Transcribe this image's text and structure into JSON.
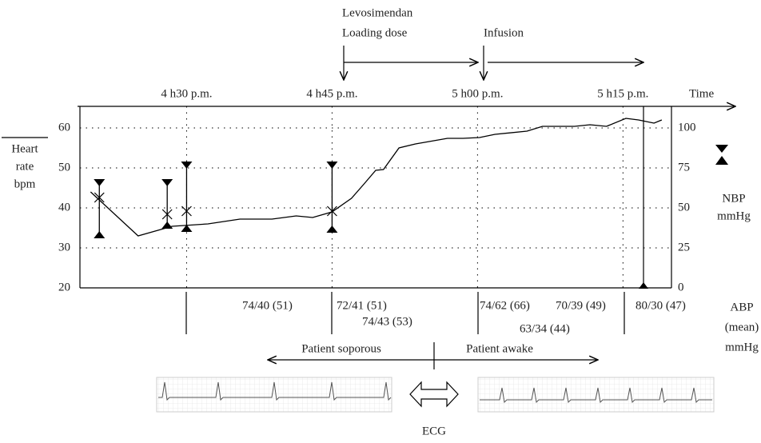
{
  "chart_data": {
    "type": "line",
    "x_axis_label": "Time",
    "y_axis_label": [
      "Heart",
      "rate",
      "bpm"
    ],
    "y2_axis_label": [
      "NBP",
      "mmHg"
    ],
    "xlim": [
      19,
      80
    ],
    "xticks": [
      {
        "value": 30,
        "label": "4 h30 p.m."
      },
      {
        "value": 45,
        "label": "4 h45 p.m."
      },
      {
        "value": 60,
        "label": "5 h00 p.m."
      },
      {
        "value": 75,
        "label": "5 h15 p.m."
      }
    ],
    "ylim": [
      20,
      65.4
    ],
    "yticks": [
      20,
      30,
      40,
      50,
      60
    ],
    "y2lim": [
      0,
      113.5
    ],
    "y2ticks": [
      0,
      25,
      50,
      75,
      100
    ],
    "grid": true,
    "series": [
      {
        "color": "#000000",
        "x": [
          20.1,
          25,
          28.5,
          32.2,
          35.5,
          38.8,
          41.3,
          43,
          45,
          47,
          48.3,
          49.5,
          50.3,
          51.9,
          53.6,
          56.9,
          58.5,
          60.2,
          61.8,
          65.1,
          66.7,
          70,
          71.6,
          73.3,
          75.3,
          76.6,
          78.2,
          79
        ],
        "values": [
          44,
          33,
          35.4,
          36,
          37.2,
          37.2,
          38,
          37.6,
          39,
          42.4,
          46,
          49.4,
          49.6,
          55,
          56,
          57.4,
          57.4,
          57.6,
          58.4,
          59.2,
          60.4,
          60.4,
          60.8,
          60.4,
          62.4,
          62,
          61.2,
          62
        ]
      }
    ],
    "nbp": {
      "axis": "y2",
      "x": [
        21,
        28,
        30,
        45
      ],
      "systolic": [
        67.5,
        67.5,
        78.5,
        78.5
      ],
      "diastolic": [
        31.5,
        37.5,
        35.5,
        35
      ],
      "mean": [
        56.5,
        46,
        48,
        48
      ]
    },
    "levosimendan": [
      "Levosimendan",
      "Loading dose"
    ],
    "infusion": "Infusion",
    "abp_label": [
      "ABP",
      "(mean)",
      "mmHg"
    ],
    "abp_readings": [
      "74/40 (51)",
      "72/41 (51)",
      "74/43 (53)",
      "74/62 (66)",
      "70/39 (49)",
      "63/34 (44)",
      "80/30 (47)"
    ],
    "phases": [
      "Patient soporous",
      "Patient awake"
    ],
    "ecg_label": "ECG"
  }
}
